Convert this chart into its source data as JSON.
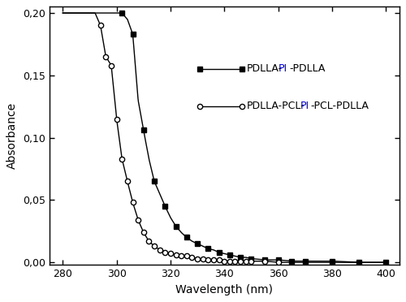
{
  "title": "",
  "xlabel": "Wavelength (nm)",
  "ylabel": "Absorbance",
  "xlim": [
    275,
    405
  ],
  "ylim": [
    -0.002,
    0.205
  ],
  "xticks": [
    280,
    300,
    320,
    340,
    360,
    380,
    400
  ],
  "yticks": [
    0.0,
    0.05,
    0.1,
    0.15,
    0.2
  ],
  "ytick_labels": [
    "0,00",
    "0,05",
    "0,10",
    "0,15",
    "0,20"
  ],
  "color_main": "#000000",
  "color_pi": "#0000CD",
  "background": "#ffffff",
  "curve1_x": [
    280,
    284,
    288,
    292,
    296,
    298,
    300,
    302,
    304,
    306,
    308,
    310,
    312,
    314,
    316,
    318,
    320,
    322,
    324,
    326,
    328,
    330,
    332,
    334,
    336,
    338,
    340,
    342,
    344,
    346,
    348,
    350,
    355,
    360,
    365,
    370,
    380,
    390,
    400
  ],
  "curve1_y": [
    0.2,
    0.2,
    0.2,
    0.2,
    0.2,
    0.2,
    0.2,
    0.2,
    0.195,
    0.183,
    0.13,
    0.106,
    0.083,
    0.065,
    0.055,
    0.045,
    0.036,
    0.029,
    0.024,
    0.02,
    0.017,
    0.015,
    0.013,
    0.011,
    0.01,
    0.008,
    0.007,
    0.006,
    0.005,
    0.004,
    0.004,
    0.003,
    0.002,
    0.002,
    0.001,
    0.001,
    0.001,
    0.0,
    0.0
  ],
  "curve2_x": [
    280,
    284,
    288,
    290,
    292,
    294,
    296,
    298,
    300,
    302,
    304,
    306,
    308,
    310,
    312,
    314,
    316,
    318,
    320,
    322,
    324,
    326,
    328,
    330,
    332,
    334,
    336,
    338,
    340,
    342,
    344,
    346,
    348,
    350,
    355,
    360,
    365,
    370,
    380,
    390,
    400
  ],
  "curve2_y": [
    0.2,
    0.2,
    0.2,
    0.2,
    0.2,
    0.19,
    0.165,
    0.158,
    0.115,
    0.083,
    0.065,
    0.048,
    0.034,
    0.024,
    0.017,
    0.013,
    0.01,
    0.008,
    0.007,
    0.006,
    0.005,
    0.005,
    0.004,
    0.003,
    0.003,
    0.002,
    0.002,
    0.002,
    0.001,
    0.001,
    0.001,
    0.001,
    0.001,
    0.001,
    0.001,
    0.0,
    0.0,
    0.0,
    0.0,
    0.0,
    0.0
  ],
  "curve1_marker_x": [
    302,
    306,
    310,
    314,
    318,
    322,
    326,
    330,
    334,
    338,
    342,
    346,
    350,
    355,
    360,
    365,
    370,
    380,
    390,
    400
  ],
  "curve2_marker_x": [
    294,
    296,
    298,
    300,
    302,
    304,
    306,
    308,
    310,
    312,
    314,
    316,
    318,
    320,
    322,
    324,
    326,
    328,
    330,
    332,
    334,
    336,
    338,
    340,
    342,
    344,
    346,
    348,
    350,
    355,
    360
  ]
}
